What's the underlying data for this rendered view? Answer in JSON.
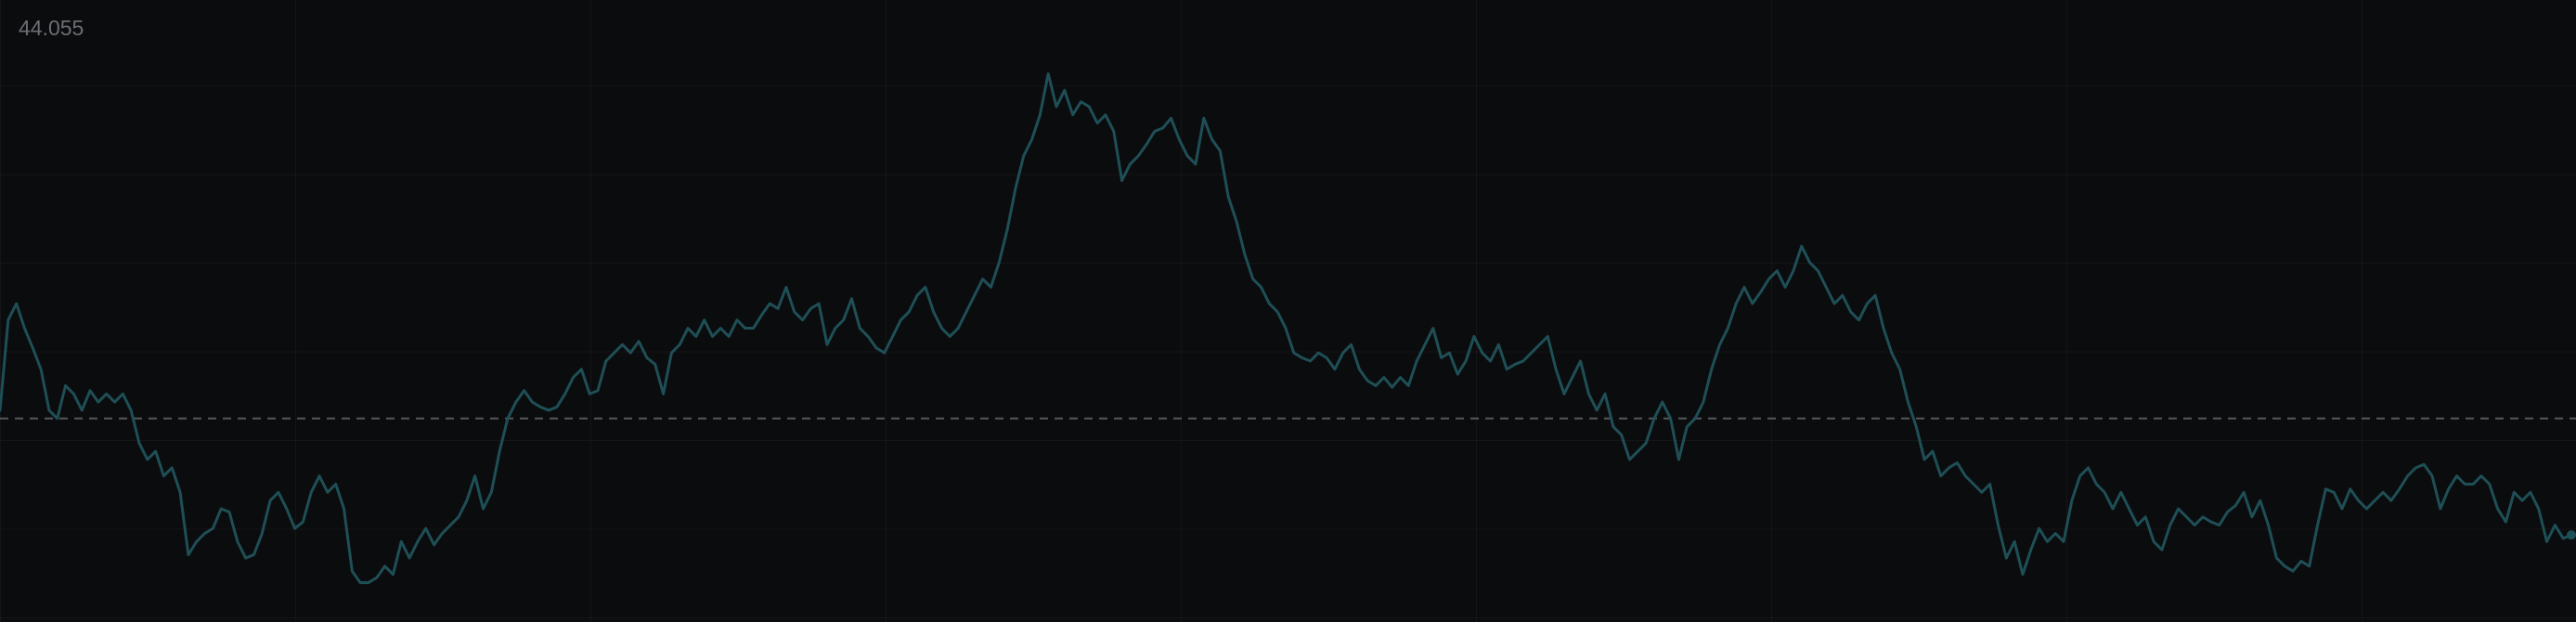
{
  "chart_data": {
    "type": "line",
    "title": "44.055",
    "color": "#1f4f56",
    "ylim": [
      0,
      379
    ],
    "reference_line": 124,
    "values": [
      129,
      184,
      194,
      179,
      167,
      154,
      129,
      124,
      144,
      139,
      129,
      141,
      134,
      139,
      134,
      139,
      129,
      109,
      99,
      104,
      89,
      94,
      79,
      41,
      49,
      54,
      57,
      69,
      67,
      49,
      39,
      41,
      54,
      74,
      79,
      69,
      57,
      61,
      79,
      89,
      79,
      84,
      69,
      31,
      24,
      24,
      27,
      34,
      29,
      49,
      39,
      49,
      57,
      47,
      54,
      59,
      64,
      74,
      89,
      69,
      79,
      104,
      124,
      134,
      141,
      134,
      131,
      129,
      131,
      139,
      149,
      154,
      139,
      141,
      159,
      164,
      169,
      164,
      171,
      161,
      157,
      139,
      164,
      169,
      179,
      174,
      184,
      174,
      179,
      174,
      184,
      179,
      179,
      187,
      194,
      191,
      204,
      189,
      184,
      191,
      194,
      169,
      179,
      184,
      197,
      179,
      174,
      167,
      164,
      174,
      184,
      189,
      199,
      204,
      189,
      179,
      174,
      179,
      189,
      199,
      209,
      204,
      219,
      239,
      264,
      284,
      294,
      309,
      334,
      314,
      324,
      309,
      317,
      314,
      304,
      309,
      299,
      269,
      279,
      284,
      291,
      299,
      301,
      307,
      294,
      284,
      279,
      307,
      294,
      287,
      259,
      244,
      224,
      209,
      204,
      194,
      189,
      179,
      164,
      161,
      159,
      164,
      161,
      154,
      164,
      169,
      154,
      147,
      144,
      149,
      143,
      149,
      144,
      159,
      169,
      179,
      161,
      164,
      151,
      159,
      174,
      164,
      159,
      169,
      154,
      157,
      159,
      164,
      169,
      174,
      154,
      139,
      149,
      159,
      139,
      129,
      139,
      119,
      114,
      99,
      104,
      109,
      124,
      134,
      124,
      99,
      119,
      124,
      134,
      154,
      169,
      179,
      194,
      204,
      194,
      201,
      209,
      214,
      204,
      214,
      229,
      219,
      214,
      204,
      194,
      199,
      189,
      184,
      194,
      199,
      179,
      164,
      154,
      134,
      119,
      99,
      104,
      89,
      94,
      97,
      89,
      84,
      79,
      84,
      59,
      39,
      49,
      29,
      44,
      57,
      49,
      54,
      49,
      74,
      89,
      94,
      84,
      79,
      69,
      79,
      69,
      59,
      64,
      49,
      44,
      59,
      69,
      64,
      59,
      64,
      61,
      59,
      67,
      71,
      79,
      64,
      74,
      59,
      39,
      34,
      31,
      37,
      34,
      59,
      81,
      79,
      69,
      81,
      74,
      69,
      74,
      79,
      74,
      81,
      89,
      94,
      96,
      89,
      69,
      81,
      89,
      84,
      84,
      89,
      84,
      69,
      61,
      79,
      74,
      79,
      69,
      49,
      59,
      51,
      53
    ]
  }
}
